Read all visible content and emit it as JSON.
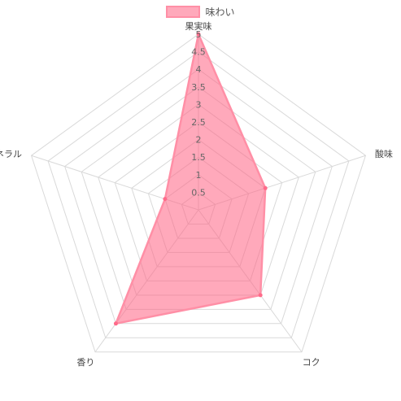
{
  "chart_data": {
    "type": "radar",
    "categories": [
      "果実味",
      "酸味",
      "コク",
      "香り",
      "ミネラル"
    ],
    "series": [
      {
        "name": "味わい",
        "values": [
          5,
          2,
          3,
          4,
          1
        ]
      }
    ],
    "ticks": [
      "0.5",
      "1",
      "1.5",
      "2",
      "2.5",
      "3",
      "3.5",
      "4",
      "4.5",
      "5"
    ],
    "rlim": [
      0,
      5
    ],
    "grid": true,
    "legend_position": "top",
    "colors": {
      "fill": "rgba(255,99,132,0.55)",
      "stroke": "#ff8fa6",
      "point": "#ff6b8a",
      "grid": "#d9d9d9",
      "tick": "#666666",
      "label": "#444444"
    }
  }
}
